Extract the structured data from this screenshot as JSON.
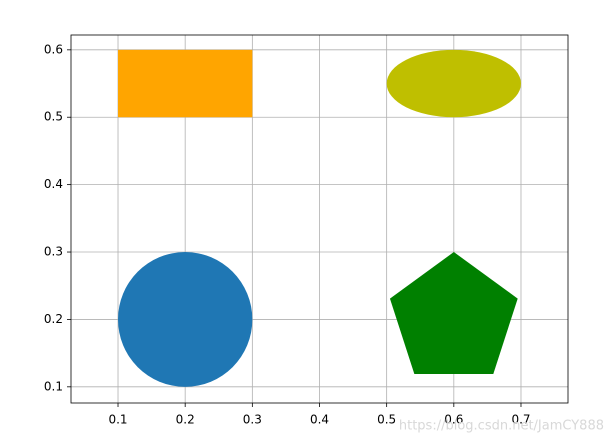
{
  "chart_data": {
    "type": "shapes",
    "shapes": [
      {
        "kind": "rectangle",
        "xy": [
          0.1,
          0.5
        ],
        "width": 0.2,
        "height": 0.1,
        "color": "#ffa500"
      },
      {
        "kind": "ellipse",
        "center": [
          0.6,
          0.55
        ],
        "width": 0.2,
        "height": 0.1,
        "color": "#bfbf00"
      },
      {
        "kind": "circle",
        "center": [
          0.2,
          0.2
        ],
        "radius": 0.1,
        "color": "#1f77b4"
      },
      {
        "kind": "polygon",
        "center": [
          0.6,
          0.2
        ],
        "radius": 0.1,
        "vertices": 5,
        "color": "#008000"
      }
    ],
    "xlim": [
      0.03,
      0.77
    ],
    "ylim": [
      0.076,
      0.622
    ],
    "xticks": [
      0.1,
      0.2,
      0.3,
      0.4,
      0.5,
      0.6,
      0.7
    ],
    "yticks": [
      0.1,
      0.2,
      0.3,
      0.4,
      0.5,
      0.6
    ],
    "grid": true,
    "watermark": "https://blog.csdn.net/JamCY888"
  }
}
